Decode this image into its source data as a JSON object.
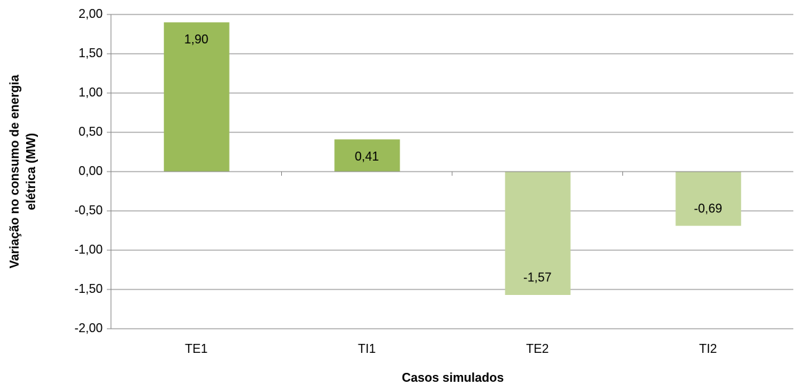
{
  "chart_data": {
    "type": "bar",
    "xlabel": "Casos simulados",
    "ylabel": [
      "Variação no consumo de energia",
      "elétrica (MW)"
    ],
    "categories": [
      "TE1",
      "TI1",
      "TE2",
      "TI2"
    ],
    "values": [
      1.9,
      0.41,
      -1.57,
      -0.69
    ],
    "value_labels": [
      "1,90",
      "0,41",
      "-1,57",
      "-0,69"
    ],
    "colors": [
      "#9bbb59",
      "#9bbb59",
      "#c3d69b",
      "#c3d69b"
    ],
    "ylim": [
      -2,
      2
    ],
    "yticks": [
      {
        "value": 2,
        "label": "2,00"
      },
      {
        "value": 1.5,
        "label": "1,50"
      },
      {
        "value": 1,
        "label": "1,00"
      },
      {
        "value": 0.5,
        "label": "0,50"
      },
      {
        "value": 0,
        "label": "0,00"
      },
      {
        "value": -0.5,
        "label": "-0,50"
      },
      {
        "value": -1,
        "label": "-1,00"
      },
      {
        "value": -1.5,
        "label": "-1,50"
      },
      {
        "value": -2,
        "label": "-2,00"
      }
    ],
    "grid": true
  }
}
